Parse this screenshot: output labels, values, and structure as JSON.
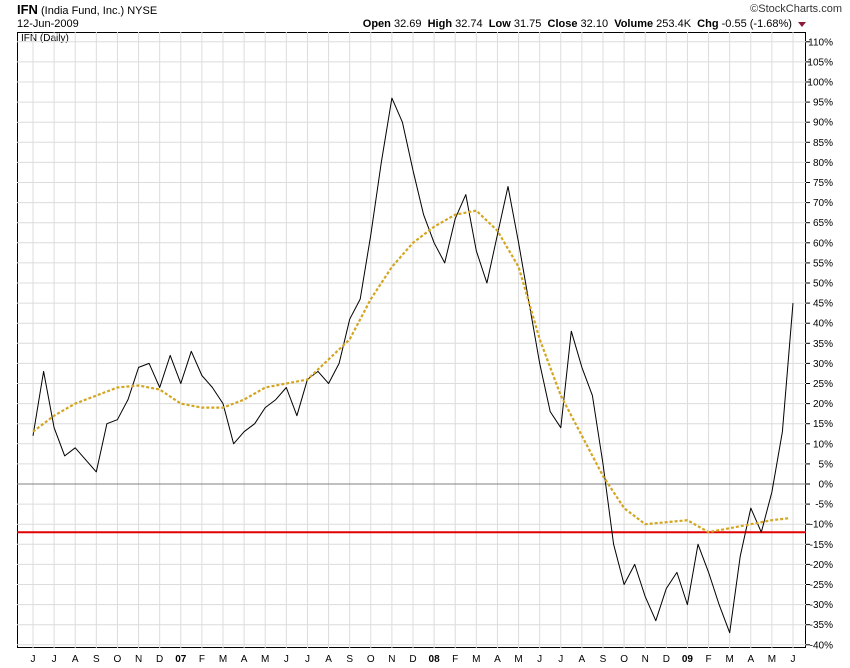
{
  "header": {
    "ticker": "IFN",
    "company": "(India Fund, Inc.)",
    "exchange": "NYSE",
    "date": "12-Jun-2009",
    "brand": "©StockCharts.com",
    "study_label": "IFN (Daily)",
    "open_label": "Open",
    "open_value": "32.69",
    "high_label": "High",
    "high_value": "32.74",
    "low_label": "Low",
    "low_value": "31.75",
    "close_label": "Close",
    "close_value": "32.10",
    "volume_label": "Volume",
    "volume_value": "253.4K",
    "chg_label": "Chg",
    "chg_value": "-0.55 (-1.68%)",
    "chg_color": "#8b1a3a"
  },
  "chart_data": {
    "type": "line",
    "title": "IFN (Daily)",
    "ylim": [
      -42,
      112
    ],
    "y_ticks": [
      110,
      105,
      100,
      95,
      90,
      85,
      80,
      75,
      70,
      65,
      60,
      55,
      50,
      45,
      40,
      35,
      30,
      25,
      20,
      15,
      10,
      5,
      0,
      -5,
      -10,
      -15,
      -20,
      -25,
      -30,
      -35,
      -40
    ],
    "y_unit": "%",
    "x_ticks": [
      "J",
      "J",
      "A",
      "S",
      "O",
      "N",
      "D",
      "07",
      "F",
      "M",
      "A",
      "M",
      "J",
      "J",
      "A",
      "S",
      "O",
      "N",
      "D",
      "08",
      "F",
      "M",
      "A",
      "M",
      "J",
      "J",
      "A",
      "S",
      "O",
      "N",
      "D",
      "09",
      "F",
      "M",
      "A",
      "M",
      "J"
    ],
    "bold_x_ticks": [
      "07",
      "08",
      "09"
    ],
    "reference_lines": [
      {
        "value": 0,
        "color": "#808080"
      },
      {
        "value": -12,
        "color": "#e00000"
      }
    ],
    "series": [
      {
        "style": "price",
        "color": "#000000",
        "x": [
          0,
          0.5,
          1,
          1.5,
          2,
          2.5,
          3,
          3.5,
          4,
          4.5,
          5,
          5.5,
          6,
          6.5,
          7,
          7.5,
          8,
          8.5,
          9,
          9.5,
          10,
          10.5,
          11,
          11.5,
          12,
          12.5,
          13,
          13.5,
          14,
          14.5,
          15,
          15.5,
          16,
          16.5,
          17,
          17.5,
          18,
          18.5,
          19,
          19.5,
          20,
          20.5,
          21,
          21.5,
          22,
          22.5,
          23,
          23.5,
          24,
          24.5,
          25,
          25.5,
          26,
          26.5,
          27,
          27.5,
          28,
          28.5,
          29,
          29.5,
          30,
          30.5,
          31,
          31.5,
          32,
          32.5,
          33,
          33.5,
          34,
          34.5,
          35,
          35.5,
          36
        ],
        "values": [
          12,
          28,
          14,
          7,
          9,
          6,
          3,
          15,
          16,
          21,
          29,
          30,
          24,
          32,
          25,
          33,
          27,
          24,
          20,
          10,
          13,
          15,
          19,
          21,
          24,
          17,
          26,
          28,
          25,
          30,
          41,
          46,
          62,
          80,
          96,
          90,
          78,
          67,
          60,
          55,
          66,
          72,
          58,
          50,
          62,
          74,
          60,
          45,
          30,
          18,
          14,
          38,
          29,
          22,
          5,
          -15,
          -25,
          -20,
          -28,
          -34,
          -26,
          -22,
          -30,
          -15,
          -22,
          -30,
          -37,
          -18,
          -6,
          -12,
          -2,
          13,
          45
        ],
        "line_width": 1
      },
      {
        "style": "moving-average",
        "color": "#d4a520",
        "x": [
          0,
          1,
          2,
          3,
          4,
          5,
          6,
          7,
          8,
          9,
          10,
          11,
          12,
          13,
          14,
          15,
          16,
          17,
          18,
          19,
          20,
          21,
          22,
          23,
          24,
          25,
          26,
          27,
          28,
          29,
          30,
          31,
          32,
          33,
          34,
          35,
          35.8
        ],
        "values": [
          13,
          17,
          20,
          22,
          24,
          24.5,
          23.5,
          20,
          19,
          19,
          21,
          24,
          25,
          26,
          31,
          36,
          46,
          54,
          60,
          64,
          67,
          68,
          63,
          54,
          36,
          22,
          12,
          2,
          -6,
          -10,
          -9.5,
          -9,
          -12,
          -11,
          -10,
          -9,
          -8.5
        ],
        "line_width": 2.2,
        "dash": "3,2"
      }
    ]
  }
}
